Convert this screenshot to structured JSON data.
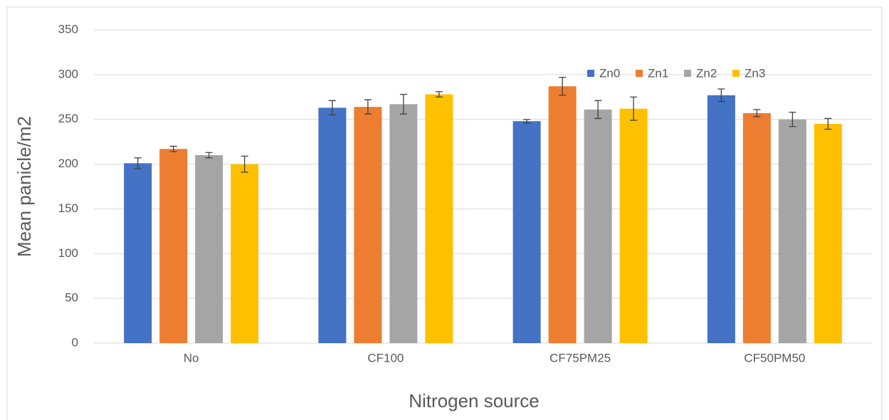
{
  "chart_data": {
    "type": "bar",
    "x_label": "Nitrogen source",
    "y_label": "Mean panicle/m2",
    "categories": [
      "No",
      "CF100",
      "CF75PM25",
      "CF50PM50"
    ],
    "series": [
      {
        "name": "Zn0",
        "color": "#4472c4",
        "values": [
          201,
          263,
          248,
          277
        ],
        "errors": [
          6,
          8,
          2,
          7
        ]
      },
      {
        "name": "Zn1",
        "color": "#ed7d31",
        "values": [
          217,
          264,
          287,
          257
        ],
        "errors": [
          3,
          8,
          10,
          4
        ]
      },
      {
        "name": "Zn2",
        "color": "#a5a5a5",
        "values": [
          210,
          267,
          261,
          250
        ],
        "errors": [
          3,
          11,
          10,
          8
        ]
      },
      {
        "name": "Zn3",
        "color": "#ffc000",
        "values": [
          200,
          278,
          262,
          245
        ],
        "errors": [
          9,
          3,
          13,
          6
        ]
      }
    ],
    "ylim": [
      0,
      350
    ],
    "yticks": [
      0,
      50,
      100,
      150,
      200,
      250,
      300,
      350
    ],
    "grid": true,
    "legend": "top-right"
  }
}
